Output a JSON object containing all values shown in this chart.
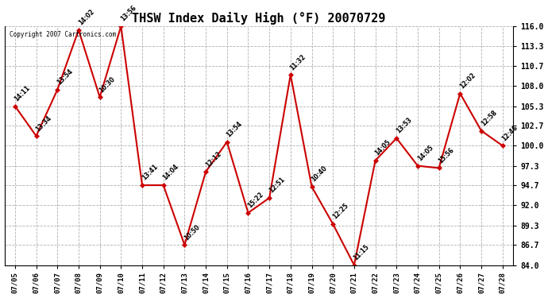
{
  "title": "THSW Index Daily High (°F) 20070729",
  "copyright": "Copyright 2007 Cartronics.com",
  "x_labels": [
    "07/05",
    "07/06",
    "07/07",
    "07/08",
    "07/09",
    "07/10",
    "07/11",
    "07/12",
    "07/13",
    "07/14",
    "07/15",
    "07/16",
    "07/17",
    "07/18",
    "07/19",
    "07/20",
    "07/21",
    "07/22",
    "07/23",
    "07/24",
    "07/25",
    "07/26",
    "07/27",
    "07/28"
  ],
  "values": [
    105.3,
    101.3,
    107.5,
    115.5,
    106.5,
    116.0,
    94.7,
    94.7,
    86.7,
    96.5,
    100.5,
    91.0,
    93.0,
    109.5,
    94.5,
    89.5,
    84.0,
    98.0,
    101.0,
    97.3,
    97.0,
    107.0,
    102.0,
    100.0
  ],
  "times": [
    "14:11",
    "13:34",
    "13:54",
    "14:02",
    "10:30",
    "13:56",
    "13:41",
    "14:04",
    "10:50",
    "12:12",
    "13:54",
    "15:22",
    "12:51",
    "11:32",
    "10:40",
    "12:25",
    "11:15",
    "14:05",
    "13:53",
    "14:05",
    "15:56",
    "12:02",
    "12:58",
    "12:46"
  ],
  "ylim": [
    84.0,
    116.0
  ],
  "yticks": [
    84.0,
    86.7,
    89.3,
    92.0,
    94.7,
    97.3,
    100.0,
    102.7,
    105.3,
    108.0,
    110.7,
    113.3,
    116.0
  ],
  "line_color": "#cc0000",
  "marker_color": "#cc0000",
  "background_color": "#ffffff",
  "grid_color": "#b0b0b0",
  "title_fontsize": 11
}
